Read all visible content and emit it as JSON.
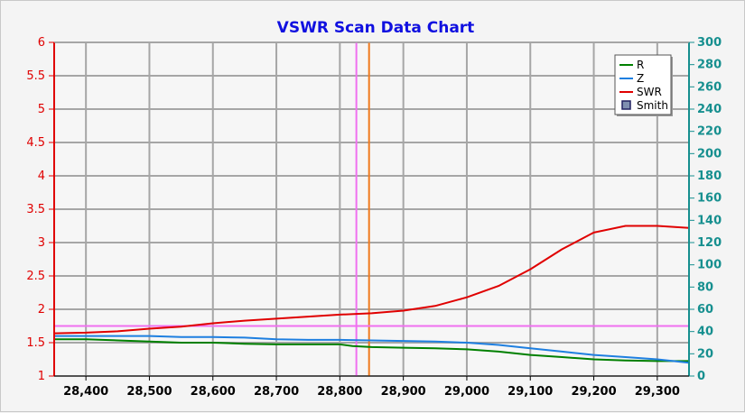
{
  "chart_data": {
    "type": "line",
    "title": "VSWR Scan Data Chart",
    "xlabel": "",
    "ylabel": "",
    "xlim": [
      28350,
      29350
    ],
    "x_ticks": [
      28400,
      28500,
      28600,
      28700,
      28800,
      28900,
      29000,
      29100,
      29200,
      29300
    ],
    "x_tick_labels": [
      "28,400",
      "28,500",
      "28,600",
      "28,700",
      "28,800",
      "28,900",
      "29,000",
      "29,100",
      "29,200",
      "29,300"
    ],
    "y_left": {
      "lim": [
        1,
        6
      ],
      "ticks": [
        1,
        1.5,
        2,
        2.5,
        3,
        3.5,
        4,
        4.5,
        5,
        5.5,
        6
      ],
      "tick_labels": [
        "1",
        "1.5",
        "2",
        "2.5",
        "3",
        "3.5",
        "4",
        "4.5",
        "5",
        "5.5",
        "6"
      ],
      "color": "#e00000"
    },
    "y_right": {
      "lim": [
        0,
        300
      ],
      "ticks": [
        0,
        20,
        40,
        60,
        80,
        100,
        120,
        140,
        160,
        180,
        200,
        220,
        240,
        260,
        280,
        300
      ],
      "tick_labels": [
        "0",
        "20",
        "40",
        "60",
        "80",
        "100",
        "120",
        "140",
        "160",
        "180",
        "200",
        "220",
        "240",
        "260",
        "280",
        "300"
      ],
      "color": "#168f8f"
    },
    "grid": true,
    "legend_position": "top-right",
    "series": [
      {
        "name": "R",
        "axis": "right",
        "color": "#008000",
        "x": [
          28350,
          28400,
          28450,
          28500,
          28550,
          28600,
          28650,
          28700,
          28750,
          28800,
          28820,
          28850,
          28900,
          28950,
          29000,
          29050,
          29100,
          29150,
          29200,
          29250,
          29300,
          29350
        ],
        "values": [
          33,
          33,
          32,
          31,
          30,
          30,
          29,
          28.5,
          28.5,
          28.5,
          27,
          26,
          25.5,
          25,
          24,
          22,
          19,
          17,
          15,
          14,
          13.5,
          13.5
        ]
      },
      {
        "name": "Z",
        "axis": "right",
        "color": "#1e7fe0",
        "x": [
          28350,
          28400,
          28450,
          28500,
          28550,
          28600,
          28650,
          28700,
          28750,
          28800,
          28850,
          28900,
          28950,
          29000,
          29050,
          29100,
          29150,
          29200,
          29250,
          29300,
          29350
        ],
        "values": [
          36,
          36,
          36,
          36,
          35,
          35,
          34.5,
          33,
          32.5,
          32.5,
          32,
          31.5,
          31,
          30,
          28,
          25,
          22,
          19,
          17,
          15,
          12
        ]
      },
      {
        "name": "SWR",
        "axis": "left",
        "color": "#e00000",
        "x": [
          28350,
          28400,
          28450,
          28500,
          28550,
          28600,
          28650,
          28700,
          28750,
          28800,
          28850,
          28900,
          28950,
          29000,
          29050,
          29100,
          29150,
          29200,
          29250,
          29300,
          29350
        ],
        "values": [
          1.64,
          1.65,
          1.67,
          1.71,
          1.74,
          1.79,
          1.83,
          1.86,
          1.89,
          1.92,
          1.94,
          1.98,
          2.05,
          2.18,
          2.35,
          2.6,
          2.9,
          3.15,
          3.25,
          3.25,
          3.22
        ]
      },
      {
        "name": "Smith",
        "color": "#202060",
        "x": [],
        "values": []
      }
    ],
    "annotations": [
      {
        "type": "vline",
        "x": 28826,
        "color": "#f070f0"
      },
      {
        "type": "vline",
        "x": 28846,
        "color": "#f07a1e"
      },
      {
        "type": "hline",
        "axis": "left",
        "y": 1.75,
        "color": "#f070f0"
      }
    ]
  }
}
